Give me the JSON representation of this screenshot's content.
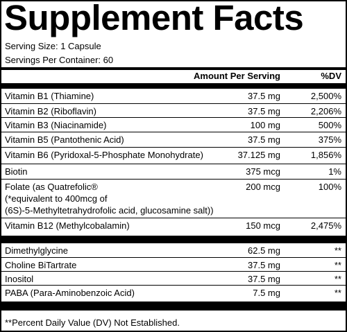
{
  "header": {
    "title": "Supplement Facts",
    "serving_size": "Serving Size: 1 Capsule",
    "servings_per_container": "Servings Per Container: 60"
  },
  "table": {
    "columns": [
      "Amount Per Serving",
      "%DV"
    ],
    "sections": [
      [
        {
          "name": "Vitamin B1 (Thiamine)",
          "amount": "37.5 mg",
          "dv": "2,500%"
        },
        {
          "name": "Vitamin B2 (Riboflavin)",
          "amount": "37.5 mg",
          "dv": "2,206%"
        },
        {
          "name": "Vitamin B3 (Niacinamide)",
          "amount": "100 mg",
          "dv": "500%"
        },
        {
          "name": "Vitamin B5 (Pantothenic Acid)",
          "amount": "37.5 mg",
          "dv": "375%"
        },
        {
          "name": "Vitamin B6 (Pyridoxal-5-Phosphate Monohydrate)",
          "amount": "37.125 mg",
          "dv": "1,856%"
        },
        {
          "name": "Biotin",
          "amount": "375 mcg",
          "dv": "1%"
        },
        {
          "name": "Folate (as Quatrefolic®",
          "detail": [
            "(*equivalent to 400mcg of",
            "(6S)-5-Methyltetrahydrofolic acid, glucosamine salt))"
          ],
          "amount": "200 mcg",
          "dv": "100%"
        },
        {
          "name": "Vitamin B12 (Methylcobalamin)",
          "amount": "150 mcg",
          "dv": "2,475%"
        }
      ],
      [
        {
          "name": "Dimethylglycine",
          "amount": "62.5 mg",
          "dv": "**"
        },
        {
          "name": "Choline BiTartrate",
          "amount": "37.5 mg",
          "dv": "**"
        },
        {
          "name": "Inositol",
          "amount": "37.5 mg",
          "dv": "**"
        },
        {
          "name": "PABA (Para-Aminobenzoic Acid)",
          "amount": "7.5 mg",
          "dv": "**"
        }
      ]
    ]
  },
  "footnote": "**Percent Daily Value (DV) Not Established."
}
